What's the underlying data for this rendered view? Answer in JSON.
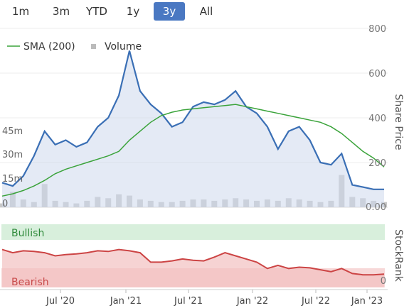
{
  "range_selector": {
    "buttons": [
      {
        "label": "1m",
        "active": false
      },
      {
        "label": "3m",
        "active": false
      },
      {
        "label": "YTD",
        "active": false
      },
      {
        "label": "1y",
        "active": false
      },
      {
        "label": "3y",
        "active": true
      },
      {
        "label": "All",
        "active": false
      }
    ]
  },
  "chart_data": [
    {
      "type": "line",
      "ylabel": "Share Price",
      "ylim": [
        0,
        800
      ],
      "yticks": [
        "0.00",
        "200",
        "400",
        "600",
        "800"
      ],
      "xticks": [
        "Jul '20",
        "Jan '21",
        "Jul '21",
        "Jan '22",
        "Jul '22",
        "Jan '23"
      ],
      "x": [
        "2020-02",
        "2020-03",
        "2020-04",
        "2020-05",
        "2020-06",
        "2020-07",
        "2020-08",
        "2020-09",
        "2020-10",
        "2020-11",
        "2020-12",
        "2021-01",
        "2021-02",
        "2021-03",
        "2021-04",
        "2021-05",
        "2021-06",
        "2021-07",
        "2021-08",
        "2021-09",
        "2021-10",
        "2021-11",
        "2021-12",
        "2022-01",
        "2022-02",
        "2022-03",
        "2022-04",
        "2022-05",
        "2022-06",
        "2022-07",
        "2022-08",
        "2022-09",
        "2022-10",
        "2022-11",
        "2022-12",
        "2023-01",
        "2023-02"
      ],
      "series": [
        {
          "name": "Share Price",
          "color": "#3a6fb5",
          "values": [
            110,
            95,
            140,
            230,
            340,
            280,
            300,
            270,
            290,
            360,
            400,
            500,
            700,
            520,
            460,
            420,
            360,
            380,
            450,
            470,
            460,
            480,
            520,
            450,
            420,
            360,
            260,
            340,
            360,
            300,
            200,
            190,
            240,
            100,
            90,
            80,
            80
          ]
        },
        {
          "name": "SMA (200)",
          "color": "#3aa33a",
          "values": [
            50,
            60,
            75,
            95,
            120,
            150,
            170,
            185,
            200,
            215,
            230,
            250,
            300,
            340,
            380,
            410,
            425,
            435,
            440,
            445,
            450,
            455,
            460,
            450,
            440,
            430,
            420,
            410,
            400,
            390,
            380,
            360,
            330,
            290,
            250,
            220,
            180
          ]
        }
      ],
      "volume": {
        "name": "Volume",
        "color": "#c8c8c8",
        "yticks": [
          "0",
          "15m",
          "30m",
          "45m"
        ],
        "ylim": [
          0,
          60
        ],
        "values": [
          3,
          12,
          6,
          4,
          18,
          5,
          4,
          3,
          5,
          8,
          7,
          10,
          9,
          6,
          5,
          4,
          4,
          5,
          6,
          6,
          5,
          6,
          7,
          6,
          5,
          6,
          5,
          7,
          6,
          5,
          4,
          5,
          25,
          8,
          7,
          5,
          4
        ]
      }
    },
    {
      "type": "area",
      "ylabel": "StockRank",
      "bands": [
        "Bullish",
        "Bearish"
      ],
      "yticks": [
        "0"
      ],
      "ylim": [
        0,
        100
      ],
      "series": [
        {
          "name": "StockRank",
          "color": "#cc4444",
          "values": [
            60,
            55,
            58,
            57,
            55,
            50,
            52,
            53,
            55,
            58,
            57,
            60,
            58,
            55,
            40,
            40,
            42,
            45,
            43,
            42,
            48,
            55,
            50,
            45,
            40,
            30,
            35,
            30,
            32,
            31,
            28,
            25,
            30,
            22,
            20,
            20,
            21
          ]
        }
      ]
    }
  ]
}
